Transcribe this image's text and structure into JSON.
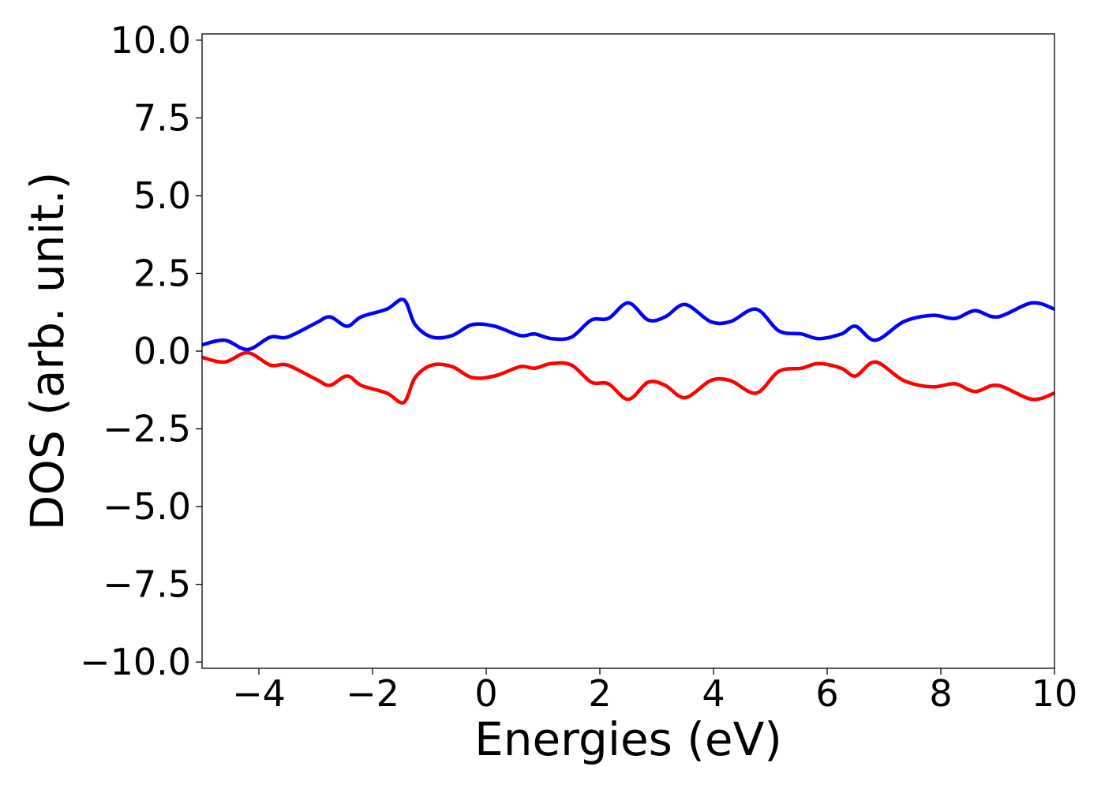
{
  "chart_data": {
    "type": "line",
    "title": "",
    "xlabel": "Energies (eV)",
    "ylabel": "DOS (arb. unit.)",
    "xlim": [
      -5,
      10
    ],
    "ylim": [
      -10.2,
      10.2
    ],
    "xticks": [
      -4,
      -2,
      0,
      2,
      4,
      6,
      8,
      10
    ],
    "xtick_labels": [
      "−4",
      "−2",
      "0",
      "2",
      "4",
      "6",
      "8",
      "10"
    ],
    "yticks": [
      10.0,
      7.5,
      5.0,
      2.5,
      0.0,
      -2.5,
      -5.0,
      -7.5,
      -10.0
    ],
    "ytick_labels": [
      "10.0",
      "7.5",
      "5.0",
      "2.5",
      "0.0",
      "−2.5",
      "−5.0",
      "−7.5",
      "−10.0"
    ],
    "grid": false,
    "series": [
      {
        "color": "#0000ff",
        "x": [
          -5.0,
          -4.6,
          -4.2,
          -3.8,
          -3.5,
          -3.0,
          -2.75,
          -2.45,
          -2.2,
          -1.75,
          -1.45,
          -1.25,
          -0.95,
          -0.6,
          -0.25,
          0.15,
          0.6,
          0.85,
          1.15,
          1.5,
          1.85,
          2.15,
          2.5,
          2.85,
          3.15,
          3.5,
          3.95,
          4.3,
          4.75,
          5.15,
          5.55,
          5.85,
          6.25,
          6.5,
          6.85,
          7.35,
          7.85,
          8.25,
          8.6,
          9.0,
          9.6,
          10.0
        ],
        "y": [
          0.2,
          0.35,
          0.05,
          0.45,
          0.45,
          0.9,
          1.1,
          0.8,
          1.1,
          1.35,
          1.65,
          0.85,
          0.45,
          0.5,
          0.85,
          0.8,
          0.5,
          0.55,
          0.4,
          0.45,
          1.0,
          1.05,
          1.55,
          1.0,
          1.1,
          1.5,
          0.95,
          0.95,
          1.35,
          0.65,
          0.55,
          0.4,
          0.55,
          0.8,
          0.35,
          0.95,
          1.15,
          1.05,
          1.3,
          1.1,
          1.55,
          1.35
        ]
      },
      {
        "color": "#ff0000",
        "x": [
          -5.0,
          -4.6,
          -4.2,
          -3.8,
          -3.5,
          -3.0,
          -2.75,
          -2.45,
          -2.2,
          -1.75,
          -1.45,
          -1.25,
          -0.95,
          -0.6,
          -0.25,
          0.15,
          0.6,
          0.85,
          1.15,
          1.5,
          1.85,
          2.15,
          2.5,
          2.85,
          3.15,
          3.5,
          3.95,
          4.3,
          4.75,
          5.15,
          5.55,
          5.85,
          6.25,
          6.5,
          6.85,
          7.35,
          7.85,
          8.25,
          8.6,
          9.0,
          9.6,
          10.0
        ],
        "y": [
          -0.2,
          -0.35,
          -0.05,
          -0.45,
          -0.45,
          -0.9,
          -1.1,
          -0.8,
          -1.1,
          -1.35,
          -1.65,
          -0.85,
          -0.45,
          -0.5,
          -0.85,
          -0.8,
          -0.5,
          -0.55,
          -0.4,
          -0.45,
          -1.0,
          -1.05,
          -1.55,
          -1.0,
          -1.1,
          -1.5,
          -0.95,
          -0.95,
          -1.35,
          -0.65,
          -0.55,
          -0.4,
          -0.55,
          -0.8,
          -0.35,
          -0.95,
          -1.15,
          -1.05,
          -1.3,
          -1.1,
          -1.55,
          -1.35
        ]
      }
    ]
  }
}
